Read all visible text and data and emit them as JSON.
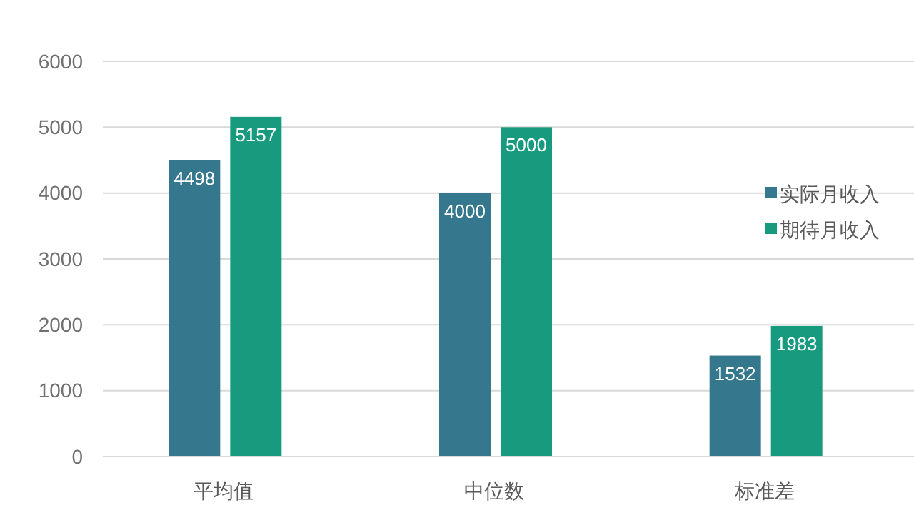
{
  "chart_data": {
    "type": "bar",
    "categories": [
      "平均值",
      "中位数",
      "标准差"
    ],
    "series": [
      {
        "name": "实际月收入",
        "color": "#35788e",
        "values": [
          4498,
          4000,
          1532
        ]
      },
      {
        "name": "期待月收入",
        "color": "#179a7e",
        "values": [
          5157,
          5000,
          1983
        ]
      }
    ],
    "ylim": [
      0,
      6000
    ],
    "yticks": [
      0,
      1000,
      2000,
      3000,
      4000,
      5000,
      6000
    ],
    "grid": "y",
    "legend": "right",
    "data_labels": true
  }
}
